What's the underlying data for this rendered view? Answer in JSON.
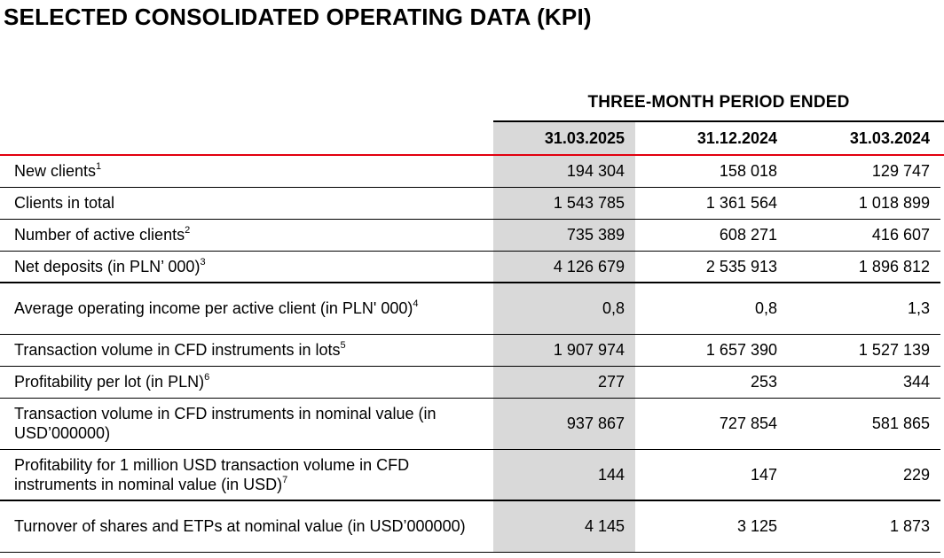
{
  "title": "SELECTED CONSOLIDATED OPERATING DATA (KPI)",
  "period_header": "THREE-MONTH PERIOD ENDED",
  "columns": [
    "31.03.2025",
    "31.12.2024",
    "31.03.2024"
  ],
  "rows": [
    {
      "label": "New clients",
      "note": "1",
      "values": [
        "194 304",
        "158 018",
        "129 747"
      ]
    },
    {
      "label": "Clients in total",
      "note": "",
      "values": [
        "1 543 785",
        "1 361 564",
        "1 018 899"
      ]
    },
    {
      "label": "Number of active clients",
      "note": "2",
      "values": [
        "735 389",
        "608 271",
        "416 607"
      ]
    },
    {
      "label": "Net deposits (in PLN’ 000)",
      "note": "3",
      "values": [
        "4 126 679",
        "2 535 913",
        "1 896 812"
      ]
    },
    {
      "label": "Average operating income per active client (in PLN' 000)",
      "note": "4",
      "values": [
        "0,8",
        "0,8",
        "1,3"
      ]
    },
    {
      "label": "Transaction volume in CFD instruments in lots",
      "note": "5",
      "values": [
        "1 907 974",
        "1 657 390",
        "1 527 139"
      ]
    },
    {
      "label": "Profitability per lot (in PLN)",
      "note": "6",
      "values": [
        "277",
        "253",
        "344"
      ]
    },
    {
      "label": "Transaction volume in CFD instruments in nominal value (in USD’000000)",
      "note": "",
      "values": [
        "937 867",
        "727 854",
        "581 865"
      ]
    },
    {
      "label": "Profitability for 1 million USD transaction volume in CFD instruments in nominal value (in USD)",
      "note": "7",
      "values": [
        "144",
        "147",
        "229"
      ]
    },
    {
      "label": "Turnover of shares and ETPs at nominal value (in USD’000000)",
      "note": "",
      "values": [
        "4 145",
        "3 125",
        "1 873"
      ]
    }
  ]
}
